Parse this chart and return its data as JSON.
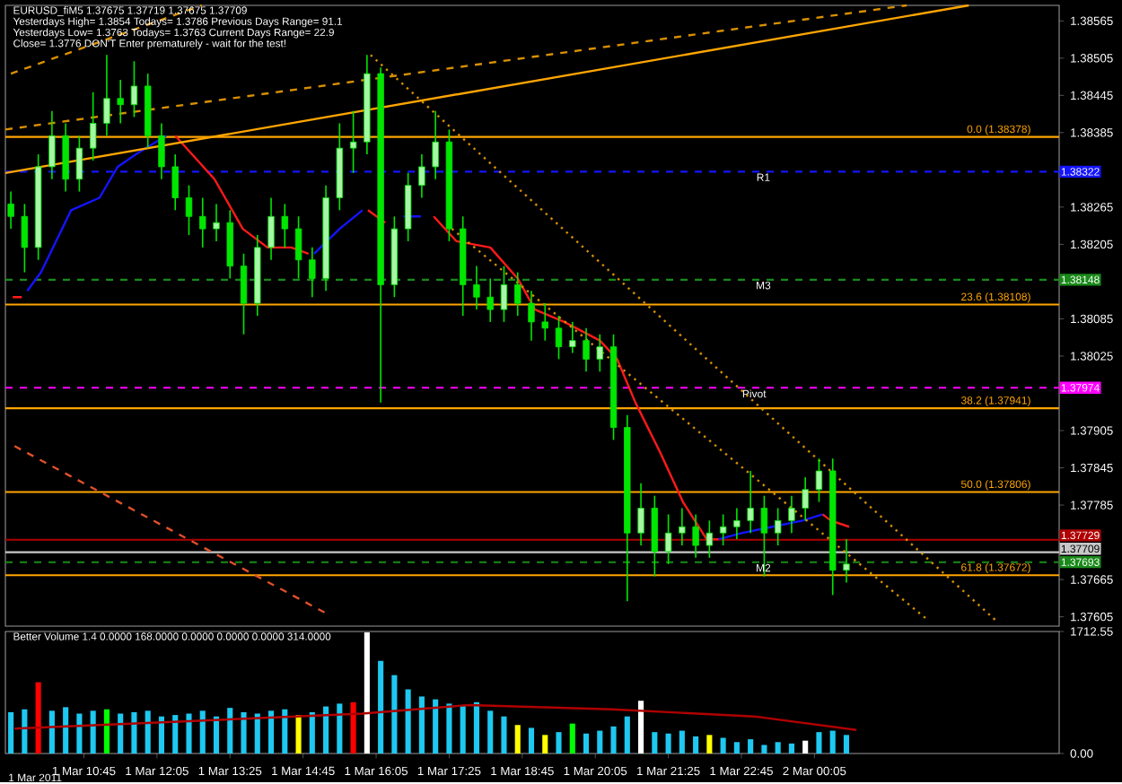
{
  "chart_data": [
    {
      "type": "candlestick",
      "title": "EURUSD_fiM5 1.37675 1.37719 1.37675 1.37709",
      "annotations": [
        "Yesterdays High= 1.3854  Todays= 1.3786  Previous Days Range= 91.1",
        "Yesterdays Low= 1.3763  Todays= 1.3763  Current Days Range= 22.9",
        "Close= 1.3776  DON'T Enter prematurely - wait for the test!",
        {
          "text": "R1",
          "x": "2011-03-01T23:09",
          "y": 1.38322
        },
        {
          "text": "M3",
          "x": "2011-03-01T23:09",
          "y": 1.38148
        },
        {
          "text": "Pivot",
          "x": "2011-03-01T22:59",
          "y": 1.37974
        },
        {
          "text": "M2",
          "x": "2011-03-01T23:09",
          "y": 1.37693
        }
      ],
      "color": "#00e600",
      "x": [
        "2011-03-01T09:25",
        "2011-03-01T09:40",
        "2011-03-01T09:55",
        "2011-03-01T10:10",
        "2011-03-01T10:25",
        "2011-03-01T10:40",
        "2011-03-01T10:55",
        "2011-03-01T11:10",
        "2011-03-01T11:25",
        "2011-03-01T11:40",
        "2011-03-01T11:55",
        "2011-03-01T12:10",
        "2011-03-01T12:25",
        "2011-03-01T12:40",
        "2011-03-01T12:55",
        "2011-03-01T13:10",
        "2011-03-01T13:25",
        "2011-03-01T13:40",
        "2011-03-01T13:55",
        "2011-03-01T14:10",
        "2011-03-01T14:25",
        "2011-03-01T14:40",
        "2011-03-01T14:55",
        "2011-03-01T15:10",
        "2011-03-01T15:25",
        "2011-03-01T15:40",
        "2011-03-01T15:55",
        "2011-03-01T16:10",
        "2011-03-01T16:25",
        "2011-03-01T16:40",
        "2011-03-01T16:55",
        "2011-03-01T17:10",
        "2011-03-01T17:25",
        "2011-03-01T17:40",
        "2011-03-01T17:55",
        "2011-03-01T18:10",
        "2011-03-01T18:25",
        "2011-03-01T18:40",
        "2011-03-01T18:55",
        "2011-03-01T19:10",
        "2011-03-01T19:25",
        "2011-03-01T19:40",
        "2011-03-01T19:55",
        "2011-03-01T20:10",
        "2011-03-01T20:25",
        "2011-03-01T20:40",
        "2011-03-01T20:55",
        "2011-03-01T21:10",
        "2011-03-01T21:25",
        "2011-03-01T21:40",
        "2011-03-01T21:55",
        "2011-03-01T22:10",
        "2011-03-01T22:25",
        "2011-03-01T22:40",
        "2011-03-01T22:55",
        "2011-03-01T23:10",
        "2011-03-01T23:25",
        "2011-03-01T23:40",
        "2011-03-01T23:55",
        "2011-03-02T00:10",
        "2011-03-02T00:25",
        "2011-03-02T00:40"
      ],
      "ohlc": [
        [
          1.3827,
          1.3829,
          1.3823,
          1.3825
        ],
        [
          1.3825,
          1.3827,
          1.3816,
          1.382
        ],
        [
          1.382,
          1.3835,
          1.3818,
          1.3833
        ],
        [
          1.3833,
          1.3842,
          1.3831,
          1.3838
        ],
        [
          1.3838,
          1.384,
          1.3829,
          1.3831
        ],
        [
          1.3831,
          1.3838,
          1.3829,
          1.3836
        ],
        [
          1.3836,
          1.3845,
          1.3834,
          1.384
        ],
        [
          1.384,
          1.3851,
          1.3838,
          1.3844
        ],
        [
          1.3844,
          1.3847,
          1.384,
          1.3843
        ],
        [
          1.3843,
          1.385,
          1.3841,
          1.3846
        ],
        [
          1.3846,
          1.3848,
          1.3836,
          1.3838
        ],
        [
          1.3838,
          1.384,
          1.3831,
          1.3833
        ],
        [
          1.3833,
          1.3835,
          1.3826,
          1.3828
        ],
        [
          1.3828,
          1.383,
          1.3822,
          1.3825
        ],
        [
          1.3825,
          1.3828,
          1.382,
          1.3823
        ],
        [
          1.3823,
          1.3827,
          1.3821,
          1.3824
        ],
        [
          1.3824,
          1.3826,
          1.3815,
          1.3817
        ],
        [
          1.3817,
          1.3819,
          1.3806,
          1.3811
        ],
        [
          1.3811,
          1.3822,
          1.3809,
          1.382
        ],
        [
          1.382,
          1.3828,
          1.3818,
          1.3825
        ],
        [
          1.3825,
          1.3827,
          1.382,
          1.3823
        ],
        [
          1.3823,
          1.3825,
          1.3815,
          1.3818
        ],
        [
          1.3818,
          1.382,
          1.3812,
          1.3815
        ],
        [
          1.3815,
          1.383,
          1.3813,
          1.3828
        ],
        [
          1.3828,
          1.384,
          1.3826,
          1.3836
        ],
        [
          1.3836,
          1.3842,
          1.3832,
          1.3837
        ],
        [
          1.3837,
          1.3851,
          1.3835,
          1.3848
        ],
        [
          1.3848,
          1.3849,
          1.3795,
          1.3814
        ],
        [
          1.3814,
          1.3825,
          1.3812,
          1.3823
        ],
        [
          1.3823,
          1.3832,
          1.3821,
          1.383
        ],
        [
          1.383,
          1.3835,
          1.3828,
          1.3833
        ],
        [
          1.3833,
          1.3842,
          1.3831,
          1.3837
        ],
        [
          1.3837,
          1.3839,
          1.3821,
          1.3823
        ],
        [
          1.3823,
          1.3825,
          1.3809,
          1.3814
        ],
        [
          1.3814,
          1.3817,
          1.381,
          1.3812
        ],
        [
          1.3812,
          1.3815,
          1.3808,
          1.381
        ],
        [
          1.381,
          1.3817,
          1.3808,
          1.3814
        ],
        [
          1.3814,
          1.3816,
          1.3809,
          1.3811
        ],
        [
          1.3811,
          1.3813,
          1.3805,
          1.3808
        ],
        [
          1.3808,
          1.3811,
          1.3805,
          1.3807
        ],
        [
          1.3807,
          1.3809,
          1.3802,
          1.3804
        ],
        [
          1.3804,
          1.3808,
          1.3803,
          1.3805
        ],
        [
          1.3805,
          1.3807,
          1.38,
          1.3802
        ],
        [
          1.3802,
          1.3806,
          1.38,
          1.3804
        ],
        [
          1.3804,
          1.3806,
          1.3789,
          1.3791
        ],
        [
          1.3791,
          1.3793,
          1.3763,
          1.3774
        ],
        [
          1.3774,
          1.3782,
          1.3772,
          1.3778
        ],
        [
          1.3778,
          1.378,
          1.3767,
          1.3771
        ],
        [
          1.3771,
          1.3777,
          1.3769,
          1.3774
        ],
        [
          1.3774,
          1.3778,
          1.3772,
          1.3775
        ],
        [
          1.3775,
          1.3777,
          1.377,
          1.3772
        ],
        [
          1.3772,
          1.3776,
          1.377,
          1.3774
        ],
        [
          1.3774,
          1.3777,
          1.3772,
          1.3775
        ],
        [
          1.3775,
          1.3778,
          1.3773,
          1.3776
        ],
        [
          1.3776,
          1.3784,
          1.3774,
          1.3778
        ],
        [
          1.3778,
          1.378,
          1.3767,
          1.3774
        ],
        [
          1.3774,
          1.3778,
          1.3772,
          1.3776
        ],
        [
          1.3776,
          1.378,
          1.3774,
          1.3778
        ],
        [
          1.3778,
          1.3783,
          1.3776,
          1.3781
        ],
        [
          1.3781,
          1.3786,
          1.3779,
          1.3784
        ],
        [
          1.3784,
          1.3786,
          1.3764,
          1.3768
        ],
        [
          1.3768,
          1.3773,
          1.3766,
          1.3769
        ]
      ],
      "series": [
        {
          "type": "line",
          "color": "#1414ff",
          "x": [
            "2011-03-01T09:43",
            "2011-03-01T09:58",
            "2011-03-01T10:31",
            "2011-03-01T11:02",
            "2011-03-01T11:22",
            "2011-03-01T11:42",
            "2011-03-01T12:15",
            "2011-03-01T13:30",
            "2011-03-01T14:57",
            "2011-03-01T15:25",
            "2011-03-01T15:50",
            "2011-03-01T16:12",
            "2011-03-01T16:35",
            "2011-03-01T16:54",
            "2011-03-01T20:00",
            "2011-03-01T22:20",
            "2011-03-01T22:46",
            "2011-03-01T23:19",
            "2011-03-01T23:52",
            "2011-03-02T00:14"
          ],
          "values": [
            1.3813,
            1.3816,
            1.3826,
            1.3828,
            1.3833,
            1.3835,
            1.3838,
            null,
            1.3819,
            1.3823,
            1.3826,
            null,
            1.3825,
            1.3825,
            null,
            1.3773,
            1.3774,
            1.3775,
            1.3776,
            1.3777
          ]
        },
        {
          "type": "line",
          "color": "#ff1a1a",
          "x": [
            "2011-03-01T09:27",
            "2011-03-01T09:37",
            "2011-03-01T11:00",
            "2011-03-01T12:25",
            "2011-03-01T13:08",
            "2011-03-01T13:39",
            "2011-03-01T14:06",
            "2011-03-01T14:32",
            "2011-03-01T14:51",
            "2011-03-01T15:24",
            "2011-03-01T15:56",
            "2011-03-01T16:15",
            "2011-03-01T16:42",
            "2011-03-01T17:08",
            "2011-03-01T17:33",
            "2011-03-01T18:10",
            "2011-03-01T18:40",
            "2011-03-01T18:59",
            "2011-03-01T19:31",
            "2011-03-01T20:10",
            "2011-03-01T20:29",
            "2011-03-01T20:49",
            "2011-03-01T21:16",
            "2011-03-01T21:41",
            "2011-03-01T22:07",
            "2011-03-01T22:20",
            "2011-03-01T23:18",
            "2011-03-02T00:14",
            "2011-03-02T00:23",
            "2011-03-02T00:43"
          ],
          "values": [
            1.3812,
            1.3812,
            null,
            1.3838,
            1.3831,
            1.3823,
            1.382,
            1.382,
            1.3819,
            null,
            1.3826,
            1.3824,
            null,
            1.3825,
            1.3821,
            1.382,
            1.3815,
            1.381,
            1.3808,
            1.3805,
            1.3802,
            1.3795,
            1.3787,
            1.3779,
            1.3773,
            1.3773,
            null,
            1.3777,
            1.3776,
            1.3775
          ]
        },
        {
          "type": "line",
          "color": "#ffa500",
          "line_style": "solid",
          "x": [
            "2011-03-01T09:19",
            "2011-03-02T02:54"
          ],
          "values": [
            1.3832,
            1.3859
          ]
        },
        {
          "type": "line",
          "color": "#d89000",
          "line_style": "dashed",
          "x": [
            "2011-03-01T09:19",
            "2011-03-02T01:46"
          ],
          "values": [
            1.3839,
            1.3859
          ]
        },
        {
          "type": "line",
          "color": "#d89000",
          "line_style": "dashed",
          "x": [
            "2011-03-01T09:25",
            "2011-03-01T12:54"
          ],
          "values": [
            1.3848,
            1.3859
          ]
        },
        {
          "type": "line",
          "color": "#d89000",
          "line_style": "dotted",
          "x": [
            "2011-03-01T15:59",
            "2011-03-02T03:23"
          ],
          "values": [
            1.3851,
            1.376
          ]
        },
        {
          "type": "line",
          "color": "#d89000",
          "line_style": "dotted",
          "x": [
            "2011-03-01T17:28",
            "2011-03-02T02:09"
          ],
          "values": [
            1.3823,
            1.376
          ]
        },
        {
          "type": "line",
          "color": "#e0502a",
          "line_style": "dashed",
          "x": [
            "2011-03-01T09:29",
            "2011-03-01T15:11"
          ],
          "values": [
            1.3788,
            1.3761
          ]
        }
      ],
      "ref_lines": [
        {
          "axis": "y",
          "value": 1.38378,
          "label": "0.0 (1.38378)",
          "color": "#ffa500",
          "line_style": "solid"
        },
        {
          "axis": "y",
          "value": 1.38322,
          "label": "1.38322",
          "color": "#1414ff",
          "line_style": "dashed"
        },
        {
          "axis": "y",
          "value": 1.38148,
          "label": "1.38148",
          "color": "#1a8a1a",
          "line_style": "dashed"
        },
        {
          "axis": "y",
          "value": 1.38108,
          "label": "23.6 (1.38108)",
          "color": "#ffa500",
          "line_style": "solid"
        },
        {
          "axis": "y",
          "value": 1.37974,
          "label": "1.37974",
          "color": "#ff00ff",
          "line_style": "dashed"
        },
        {
          "axis": "y",
          "value": 1.37941,
          "label": "38.2 (1.37941)",
          "color": "#ffa500",
          "line_style": "solid"
        },
        {
          "axis": "y",
          "value": 1.37806,
          "label": "50.0 (1.37806)",
          "color": "#ffa500",
          "line_style": "solid"
        },
        {
          "axis": "y",
          "value": 1.37729,
          "label": "1.37729",
          "color": "#b00000",
          "line_style": "solid"
        },
        {
          "axis": "y",
          "value": 1.37709,
          "label": "1.37709",
          "color": "#c8c8c8",
          "line_style": "solid"
        },
        {
          "axis": "y",
          "value": 1.37693,
          "label": "1.37693",
          "color": "#1a8a1a",
          "line_style": "dashed"
        },
        {
          "axis": "y",
          "value": 1.37672,
          "label": "61.8 (1.37672)",
          "color": "#ffa500",
          "line_style": "solid"
        }
      ],
      "xlim": [
        "2011-03-01T09:19",
        "2011-03-02T04:33"
      ],
      "ylim": [
        1.3759,
        1.3859
      ],
      "yticks": [
        1.38565,
        1.38505,
        1.38445,
        1.38385,
        1.38265,
        1.38205,
        1.38085,
        1.38025,
        1.37905,
        1.37845,
        1.37785,
        1.37665,
        1.37605
      ],
      "tick_labels": "y"
    },
    {
      "type": "bar",
      "title": "Better Volume 1.4 0.0000 168.0000 0.0000 0.0000 0.0000 314.0000",
      "x": [
        "2011-03-01T09:25",
        "2011-03-01T09:40",
        "2011-03-01T09:55",
        "2011-03-01T10:10",
        "2011-03-01T10:25",
        "2011-03-01T10:40",
        "2011-03-01T10:55",
        "2011-03-01T11:10",
        "2011-03-01T11:25",
        "2011-03-01T11:40",
        "2011-03-01T11:55",
        "2011-03-01T12:10",
        "2011-03-01T12:25",
        "2011-03-01T12:40",
        "2011-03-01T12:55",
        "2011-03-01T13:10",
        "2011-03-01T13:25",
        "2011-03-01T13:40",
        "2011-03-01T13:55",
        "2011-03-01T14:10",
        "2011-03-01T14:25",
        "2011-03-01T14:40",
        "2011-03-01T14:55",
        "2011-03-01T15:10",
        "2011-03-01T15:25",
        "2011-03-01T15:40",
        "2011-03-01T15:55",
        "2011-03-01T16:10",
        "2011-03-01T16:25",
        "2011-03-01T16:40",
        "2011-03-01T16:55",
        "2011-03-01T17:10",
        "2011-03-01T17:25",
        "2011-03-01T17:40",
        "2011-03-01T17:55",
        "2011-03-01T18:10",
        "2011-03-01T18:25",
        "2011-03-01T18:40",
        "2011-03-01T18:55",
        "2011-03-01T19:10",
        "2011-03-01T19:25",
        "2011-03-01T19:40",
        "2011-03-01T19:55",
        "2011-03-01T20:10",
        "2011-03-01T20:25",
        "2011-03-01T20:40",
        "2011-03-01T20:55",
        "2011-03-01T21:10",
        "2011-03-01T21:25",
        "2011-03-01T21:40",
        "2011-03-01T21:55",
        "2011-03-01T22:10",
        "2011-03-01T22:25",
        "2011-03-01T22:40",
        "2011-03-01T22:55",
        "2011-03-01T23:10",
        "2011-03-01T23:25",
        "2011-03-01T23:40",
        "2011-03-01T23:55",
        "2011-03-02T00:10",
        "2011-03-02T00:25",
        "2011-03-02T00:40"
      ],
      "series": [
        {
          "type": "bar",
          "values": [
            580,
            620,
            1000,
            600,
            650,
            560,
            600,
            620,
            560,
            580,
            600,
            520,
            540,
            560,
            600,
            520,
            640,
            580,
            560,
            600,
            620,
            540,
            580,
            660,
            700,
            720,
            1700,
            1300,
            1100,
            900,
            800,
            760,
            700,
            680,
            720,
            600,
            520,
            400,
            360,
            260,
            300,
            420,
            280,
            320,
            380,
            520,
            740,
            300,
            280,
            320,
            240,
            260,
            220,
            160,
            200,
            120,
            160,
            140,
            180,
            300,
            320,
            260
          ],
          "colors": [
            "#1ec8f0",
            "#1ec8f0",
            "#ff0000",
            "#1ec8f0",
            "#1ec8f0",
            "#1ec8f0",
            "#1ec8f0",
            "#00ff00",
            "#1ec8f0",
            "#1ec8f0",
            "#1ec8f0",
            "#1ec8f0",
            "#1ec8f0",
            "#1ec8f0",
            "#1ec8f0",
            "#1ec8f0",
            "#1ec8f0",
            "#1ec8f0",
            "#1ec8f0",
            "#1ec8f0",
            "#1ec8f0",
            "#ffff00",
            "#1ec8f0",
            "#1ec8f0",
            "#1ec8f0",
            "#ff0000",
            "#ffffff",
            "#1ec8f0",
            "#1ec8f0",
            "#1ec8f0",
            "#1ec8f0",
            "#1ec8f0",
            "#1ec8f0",
            "#1ec8f0",
            "#1ec8f0",
            "#1ec8f0",
            "#1ec8f0",
            "#ffff00",
            "#1ec8f0",
            "#ffff00",
            "#1ec8f0",
            "#00ff00",
            "#1ec8f0",
            "#1ec8f0",
            "#1ec8f0",
            "#1ec8f0",
            "#ffffff",
            "#1ec8f0",
            "#1ec8f0",
            "#1ec8f0",
            "#1ec8f0",
            "#ffff00",
            "#1ec8f0",
            "#1ec8f0",
            "#1ec8f0",
            "#1ec8f0",
            "#1ec8f0",
            "#1ec8f0",
            "#ffffff",
            "#1ec8f0",
            "#1ec8f0",
            "#1ec8f0"
          ]
        },
        {
          "type": "line",
          "color": "#b00000",
          "x": [
            "2011-03-01T09:29",
            "2011-03-01T12:34",
            "2011-03-01T15:50",
            "2011-03-01T17:47",
            "2011-03-01T20:23",
            "2011-03-01T22:59",
            "2011-03-02T00:51"
          ],
          "values": [
            350,
            450,
            560,
            680,
            620,
            520,
            330
          ]
        }
      ],
      "xlim": [
        "2011-03-01T09:19",
        "2011-03-02T04:33"
      ],
      "ylim": [
        0,
        1712.55
      ],
      "annotations": [
        "1 Mar 2011"
      ],
      "xticks": [
        {
          "value": "2011-03-01T10:45",
          "label": "1 Mar 10:45"
        },
        {
          "value": "2011-03-01T12:05",
          "label": "1 Mar 12:05"
        },
        {
          "value": "2011-03-01T13:25",
          "label": "1 Mar 13:25"
        },
        {
          "value": "2011-03-01T14:45",
          "label": "1 Mar 14:45"
        },
        {
          "value": "2011-03-01T16:05",
          "label": "1 Mar 16:05"
        },
        {
          "value": "2011-03-01T17:25",
          "label": "1 Mar 17:25"
        },
        {
          "value": "2011-03-01T18:45",
          "label": "1 Mar 18:45"
        },
        {
          "value": "2011-03-01T20:05",
          "label": "1 Mar 20:05"
        },
        {
          "value": "2011-03-01T21:25",
          "label": "1 Mar 21:25"
        },
        {
          "value": "2011-03-01T22:45",
          "label": "1 Mar 22:45"
        },
        {
          "value": "2011-03-02T00:05",
          "label": "2 Mar 00:05"
        }
      ],
      "yticks": [
        {
          "value": 0,
          "label": "0.00"
        },
        1712.55
      ]
    }
  ]
}
